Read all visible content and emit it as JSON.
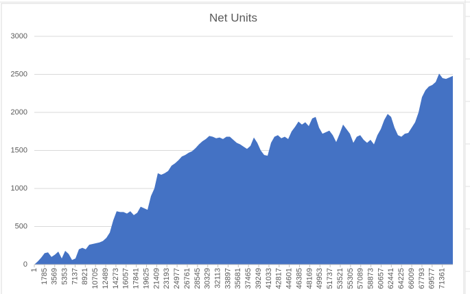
{
  "chart_data": {
    "type": "area",
    "title": "Net Units",
    "color": "#4472c4",
    "grid": true,
    "xlim": [
      1,
      73201
    ],
    "ylim": [
      0,
      3000
    ],
    "yticks": [
      0,
      500,
      1000,
      1500,
      2000,
      2500,
      3000
    ],
    "xticks": [
      1,
      1785,
      3569,
      5353,
      7137,
      8921,
      10705,
      12489,
      14273,
      16057,
      17841,
      19625,
      21409,
      23193,
      24977,
      26761,
      28545,
      30329,
      32113,
      33897,
      35681,
      37465,
      39249,
      41033,
      42817,
      44601,
      46385,
      48169,
      49953,
      51737,
      53521,
      55305,
      57089,
      58873,
      60657,
      62441,
      64225,
      66009,
      67793,
      69577,
      71361
    ],
    "x": [
      1,
      601,
      1201,
      1801,
      2401,
      3001,
      3601,
      4201,
      4801,
      5401,
      6001,
      6601,
      7201,
      7801,
      8401,
      9001,
      9601,
      10201,
      10801,
      11401,
      12001,
      12601,
      13201,
      13801,
      14401,
      15001,
      15601,
      16201,
      16801,
      17401,
      18001,
      18601,
      19201,
      19801,
      20401,
      21001,
      21601,
      22201,
      22801,
      23401,
      24001,
      24601,
      25201,
      25801,
      26401,
      27001,
      27601,
      28201,
      28801,
      29401,
      30001,
      30601,
      31201,
      31801,
      32401,
      33001,
      33601,
      34201,
      34801,
      35401,
      36001,
      36601,
      37201,
      37801,
      38401,
      39001,
      39601,
      40201,
      40801,
      41401,
      42001,
      42601,
      43201,
      43801,
      44401,
      45001,
      45601,
      46201,
      46801,
      47401,
      48001,
      48601,
      49201,
      49801,
      50401,
      51001,
      51601,
      52201,
      52801,
      53401,
      54001,
      54601,
      55201,
      55801,
      56401,
      57001,
      57601,
      58201,
      58801,
      59401,
      60001,
      60601,
      61201,
      61801,
      62401,
      63001,
      63601,
      64201,
      64801,
      65401,
      66001,
      66601,
      67201,
      67801,
      68401,
      69001,
      69601,
      70201,
      70801,
      71401,
      72001,
      72601,
      73201
    ],
    "values": [
      0,
      40,
      90,
      150,
      160,
      100,
      130,
      170,
      80,
      180,
      140,
      60,
      80,
      200,
      220,
      200,
      260,
      270,
      280,
      290,
      310,
      350,
      420,
      580,
      700,
      690,
      690,
      670,
      700,
      650,
      680,
      760,
      740,
      720,
      900,
      1000,
      1200,
      1180,
      1200,
      1230,
      1300,
      1330,
      1370,
      1420,
      1440,
      1470,
      1490,
      1530,
      1580,
      1620,
      1650,
      1690,
      1680,
      1660,
      1670,
      1650,
      1680,
      1680,
      1640,
      1600,
      1580,
      1550,
      1520,
      1560,
      1670,
      1600,
      1500,
      1440,
      1430,
      1600,
      1680,
      1700,
      1660,
      1680,
      1650,
      1750,
      1810,
      1880,
      1840,
      1870,
      1820,
      1920,
      1940,
      1800,
      1720,
      1740,
      1760,
      1700,
      1610,
      1720,
      1840,
      1780,
      1720,
      1600,
      1680,
      1700,
      1640,
      1600,
      1640,
      1580,
      1700,
      1780,
      1900,
      1980,
      1940,
      1800,
      1700,
      1680,
      1720,
      1730,
      1800,
      1870,
      2000,
      2200,
      2290,
      2340,
      2360,
      2400,
      2510,
      2450,
      2440,
      2460,
      2480
    ]
  }
}
